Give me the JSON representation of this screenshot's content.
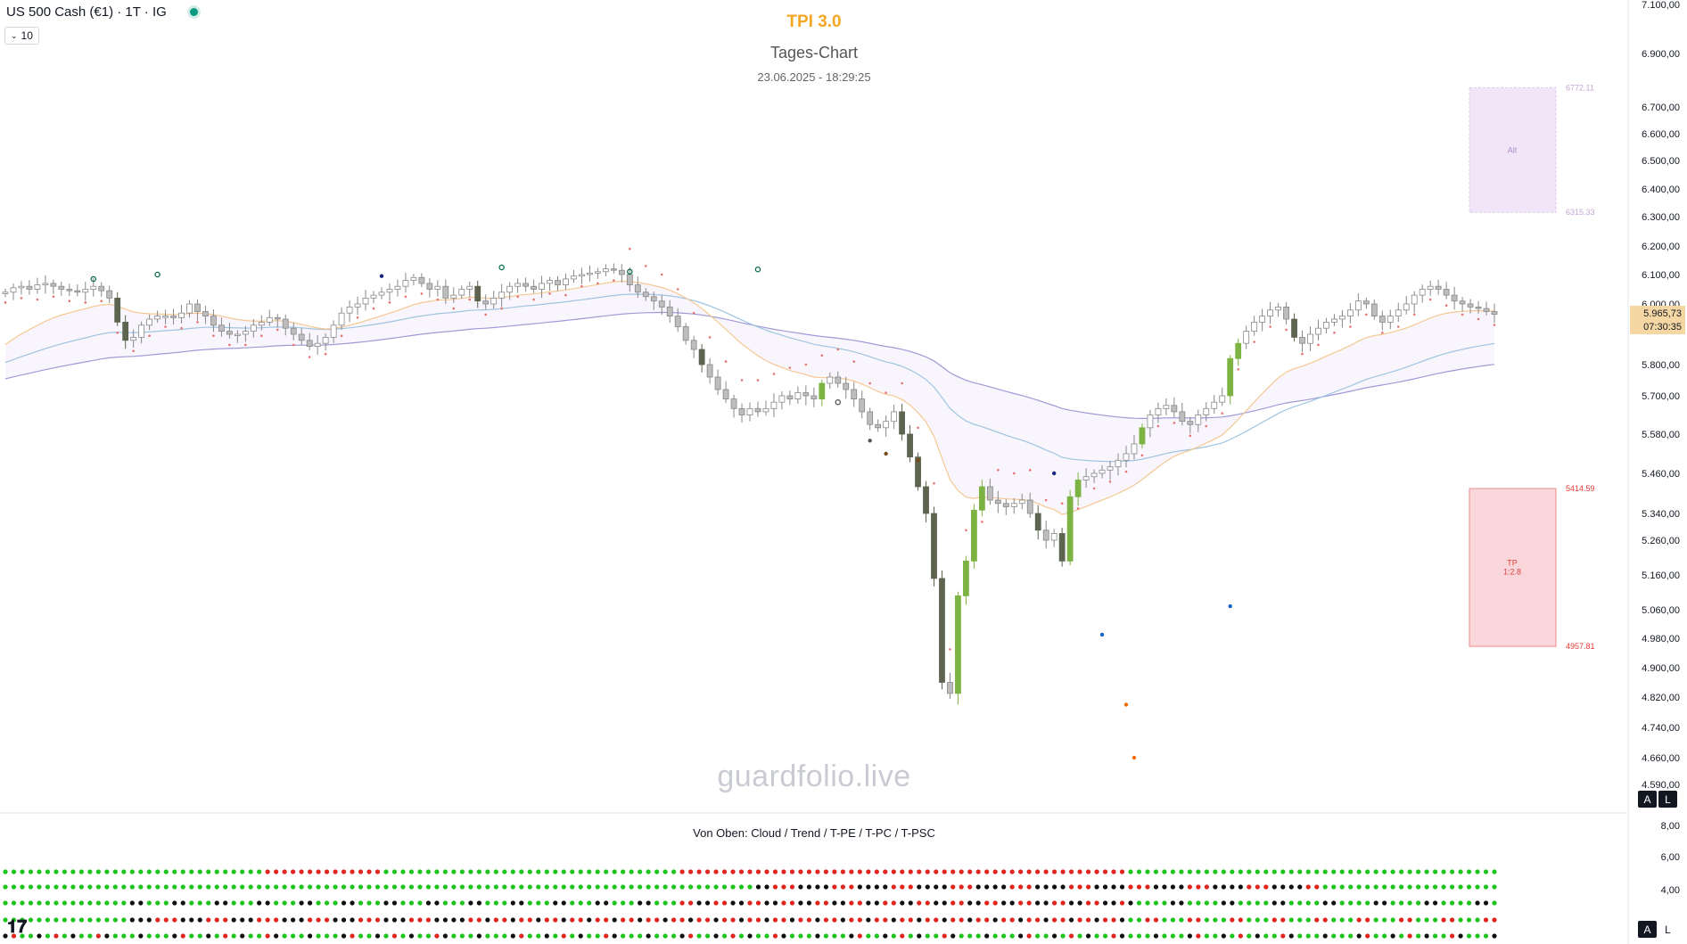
{
  "header": {
    "symbol": "US 500 Cash (€1) · 1T · IG",
    "volume_toggle": "10",
    "indicator_title": "TPI 3.0",
    "chart_label": "Tages-Chart",
    "timestamp": "23.06.2025 - 18:29:25"
  },
  "watermark": "guardfolio.live",
  "panel": {
    "label": "Von Oben: Cloud / Trend / T-PE / T-PC / T-PSC",
    "axis_labels": [
      "8,00",
      "6,00",
      "4,00"
    ]
  },
  "price_axis": {
    "ticks": [
      "7.100,00",
      "6.900,00",
      "6.700,00",
      "6.600,00",
      "6.500,00",
      "6.400,00",
      "6.300,00",
      "6.200,00",
      "6.100,00",
      "6.000,00",
      "5.800,00",
      "5.700,00",
      "5.580,00",
      "5.460,00",
      "5.340,00",
      "5.260,00",
      "5.160,00",
      "5.060,00",
      "4.980,00",
      "4.900,00",
      "4.820,00",
      "4.740,00",
      "4.660,00",
      "4.590,00"
    ],
    "current_price": "5.965,73",
    "countdown": "07:30:35"
  },
  "zones": {
    "alt": {
      "label": "Alt",
      "top": "6772.11",
      "bottom": "6315.33"
    },
    "tp": {
      "label": "TP",
      "ratio": "1:2.8",
      "top": "5414.59",
      "bottom": "4957.81"
    }
  },
  "buttons": {
    "a": "A",
    "l": "L"
  },
  "colors": {
    "bull_green": "#7cb342",
    "bear_dark": "#5d6450",
    "neutral_candle": "#9e9e9e",
    "trail_dots": "#e57373",
    "ema_orange": "#f5c892",
    "ema_blue": "#9fc4e0",
    "ema_purple": "#9f9ad6",
    "alt_zone": "#e8d5f2",
    "tp_zone": "#f8cdd0",
    "dot_green": "#1ec41e",
    "dot_red": "#e0241e",
    "dot_black": "#111111"
  },
  "chart_data": {
    "type": "candlestick",
    "ylim": [
      4590,
      7100
    ],
    "close": [
      6040,
      6055,
      6060,
      6050,
      6065,
      6070,
      6060,
      6050,
      6045,
      6040,
      6050,
      6060,
      6045,
      6020,
      5940,
      5880,
      5890,
      5930,
      5950,
      5960,
      5960,
      5955,
      5970,
      6000,
      5975,
      5960,
      5930,
      5910,
      5900,
      5900,
      5910,
      5930,
      5940,
      5955,
      5950,
      5920,
      5900,
      5880,
      5860,
      5870,
      5890,
      5930,
      5970,
      5990,
      6000,
      6020,
      6030,
      6040,
      6050,
      6060,
      6080,
      6090,
      6070,
      6050,
      6060,
      6020,
      6030,
      6050,
      6060,
      6010,
      6000,
      6020,
      6040,
      6060,
      6070,
      6060,
      6050,
      6070,
      6080,
      6065,
      6085,
      6095,
      6100,
      6105,
      6110,
      6120,
      6115,
      6100,
      6065,
      6040,
      6025,
      6010,
      5990,
      5960,
      5925,
      5880,
      5850,
      5800,
      5760,
      5720,
      5690,
      5660,
      5640,
      5660,
      5650,
      5660,
      5680,
      5700,
      5690,
      5710,
      5700,
      5690,
      5740,
      5760,
      5740,
      5720,
      5690,
      5650,
      5610,
      5600,
      5620,
      5650,
      5580,
      5510,
      5420,
      5340,
      5150,
      4860,
      4830,
      5100,
      5200,
      5350,
      5420,
      5380,
      5370,
      5360,
      5370,
      5380,
      5340,
      5290,
      5260,
      5280,
      5200,
      5390,
      5440,
      5450,
      5460,
      5470,
      5480,
      5500,
      5520,
      5550,
      5600,
      5640,
      5660,
      5670,
      5650,
      5620,
      5610,
      5640,
      5660,
      5680,
      5700,
      5820,
      5870,
      5910,
      5940,
      5960,
      5980,
      5990,
      5950,
      5890,
      5870,
      5900,
      5920,
      5940,
      5950,
      5960,
      5980,
      6010,
      6000,
      5960,
      5940,
      5960,
      5980,
      6000,
      6030,
      6050,
      6060,
      6050,
      6030,
      6010,
      6000,
      5990,
      5985,
      5975,
      5965.73
    ],
    "series": [
      {
        "name": "Cloud",
        "colors": "mostly green, red run mid-left, red block center, green right"
      },
      {
        "name": "Trend",
        "colors": "green left, black/red center block, green right"
      },
      {
        "name": "T-PE",
        "colors": "mixed green/black/red"
      },
      {
        "name": "T-PC",
        "colors": "mixed green/black/red"
      },
      {
        "name": "T-PSC",
        "colors": "mixed green/black/red"
      }
    ]
  }
}
